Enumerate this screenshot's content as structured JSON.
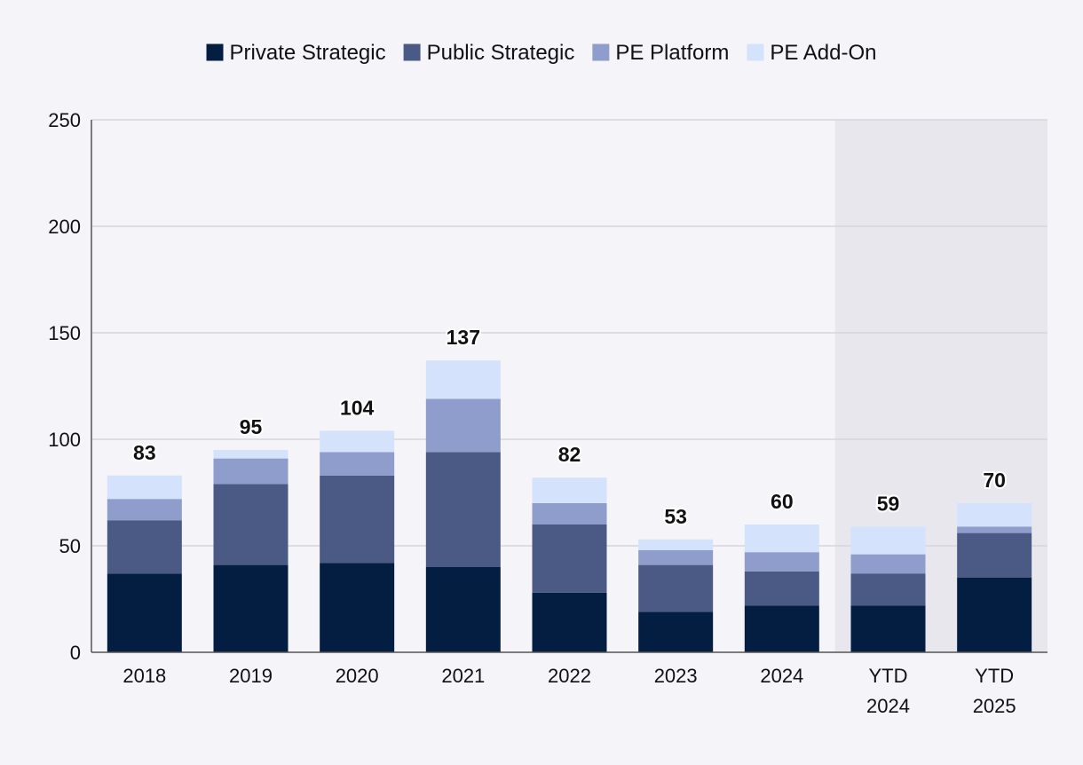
{
  "chart_data": {
    "type": "bar",
    "stacked": true,
    "title": "",
    "xlabel": "",
    "ylabel": "",
    "categories": [
      "2018",
      "2019",
      "2020",
      "2021",
      "2022",
      "2023",
      "2024",
      "YTD 2024",
      "YTD 2025"
    ],
    "series": [
      {
        "name": "Private Strategic",
        "color": "#041e42",
        "values": [
          37,
          41,
          42,
          40,
          28,
          19,
          22,
          22,
          35
        ]
      },
      {
        "name": "Public Strategic",
        "color": "#4a5a85",
        "values": [
          25,
          38,
          41,
          54,
          32,
          22,
          16,
          15,
          21
        ]
      },
      {
        "name": "PE Platform",
        "color": "#8e9dcb",
        "values": [
          10,
          12,
          11,
          25,
          10,
          7,
          9,
          9,
          3
        ]
      },
      {
        "name": "PE Add-On",
        "color": "#d4e2fb",
        "values": [
          11,
          4,
          10,
          18,
          12,
          5,
          13,
          13,
          11
        ]
      }
    ],
    "totals": [
      83,
      95,
      104,
      137,
      82,
      53,
      60,
      59,
      70
    ],
    "ylim": [
      0,
      250
    ],
    "yticks": [
      0,
      50,
      100,
      150,
      200,
      250
    ],
    "grid": true,
    "legend_position": "top-center",
    "highlighted_categories": [
      "YTD 2024",
      "YTD 2025"
    ],
    "highlight_color": "#e9e7ee"
  }
}
